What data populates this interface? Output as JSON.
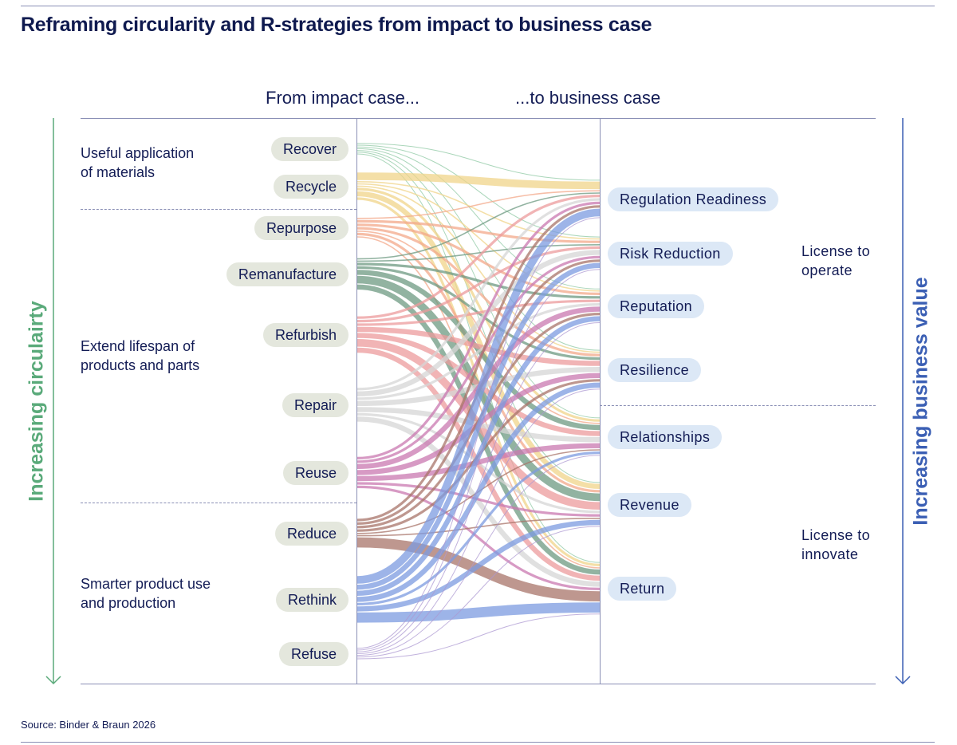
{
  "title": "Reframing circularity and R-strategies from impact to business case",
  "column_left": "From impact case...",
  "column_right": "...to business case",
  "left_axis_label": "Increasing circulairty",
  "right_axis_label": "Increasing business value",
  "groups": [
    {
      "label_line1": "Useful application",
      "label_line2": "of materials"
    },
    {
      "label_line1": "Extend lifespan of",
      "label_line2": "products and parts"
    },
    {
      "label_line1": "Smarter product use",
      "label_line2": "and production"
    }
  ],
  "licenses": [
    {
      "line1": "License to",
      "line2": "operate"
    },
    {
      "line1": "License to",
      "line2": "innovate"
    }
  ],
  "source_note": "Source: Binder & Braun 2026",
  "colors": {
    "left_arrow": "#5aaa7a",
    "right_arrow": "#3b5fb4",
    "text": "#131c55"
  },
  "sources": [
    {
      "label": "Recover",
      "color": "#8dc8a3"
    },
    {
      "label": "Recycle",
      "color": "#f0d48a"
    },
    {
      "label": "Repurpose",
      "color": "#f3a88a"
    },
    {
      "label": "Remanufacture",
      "color": "#6e9a82"
    },
    {
      "label": "Refurbish",
      "color": "#ec9b9c"
    },
    {
      "label": "Repair",
      "color": "#d6d6d6"
    },
    {
      "label": "Reuse",
      "color": "#c978b0"
    },
    {
      "label": "Reduce",
      "color": "#a87469"
    },
    {
      "label": "Rethink",
      "color": "#7c9be0"
    },
    {
      "label": "Refuse",
      "color": "#ac98d2"
    }
  ],
  "targets": [
    {
      "label": "Regulation Readiness"
    },
    {
      "label": "Risk Reduction"
    },
    {
      "label": "Reputation"
    },
    {
      "label": "Resilience"
    },
    {
      "label": "Relationships"
    },
    {
      "label": "Revenue"
    },
    {
      "label": "Return"
    }
  ],
  "link_weights": [
    [
      0.3,
      0.3,
      0.3,
      0.3,
      0.3,
      0.3,
      0.3
    ],
    [
      3,
      0.5,
      0.5,
      0.5,
      1,
      2,
      1
    ],
    [
      0.5,
      1,
      1,
      1,
      0.5,
      1,
      0.5
    ],
    [
      0.5,
      0.5,
      1,
      1,
      2,
      3,
      2
    ],
    [
      1,
      1,
      1,
      2,
      2,
      3,
      2
    ],
    [
      1,
      2,
      1,
      2,
      2,
      1,
      2
    ],
    [
      1,
      1,
      2,
      2,
      2,
      1,
      1
    ],
    [
      1,
      1,
      1,
      1,
      0.5,
      0.5,
      4
    ],
    [
      3,
      2,
      2,
      2,
      1,
      2,
      4
    ],
    [
      0.3,
      0.3,
      0.3,
      0.3,
      0.3,
      0.3,
      0.3
    ]
  ]
}
